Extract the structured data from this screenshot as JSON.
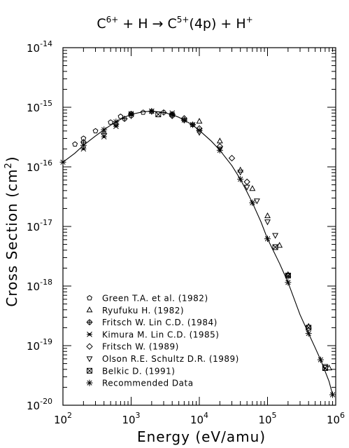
{
  "chart_data": {
    "type": "scatter",
    "title": "C6+ + H → C5+(4p) + H+",
    "title_parts": {
      "ion": "C",
      "ion_charge": "6+",
      "plus1": "+",
      "target": "H",
      "arrow": "→",
      "product": "C",
      "product_charge": "5+",
      "state": "(4p)",
      "plus2": "+",
      "proton": "H",
      "proton_charge": "+"
    },
    "xlabel": "Energy (eV/amu)",
    "ylabel_parts": {
      "main": "Cross Section (cm",
      "exp": "2",
      "close": ")"
    },
    "xscale": "log",
    "yscale": "log",
    "xlim": [
      100,
      1000000
    ],
    "ylim": [
      1e-20,
      1e-14
    ],
    "x_ticks": [
      {
        "mant": "10",
        "exp": "2"
      },
      {
        "mant": "10",
        "exp": "3"
      },
      {
        "mant": "10",
        "exp": "4"
      },
      {
        "mant": "10",
        "exp": "5"
      },
      {
        "mant": "10",
        "exp": "6"
      }
    ],
    "y_ticks": [
      {
        "mant": "10",
        "exp": "-20"
      },
      {
        "mant": "10",
        "exp": "-19"
      },
      {
        "mant": "10",
        "exp": "-18"
      },
      {
        "mant": "10",
        "exp": "-17"
      },
      {
        "mant": "10",
        "exp": "-16"
      },
      {
        "mant": "10",
        "exp": "-15"
      },
      {
        "mant": "10",
        "exp": "-14"
      }
    ],
    "grid": false,
    "legend_position": "bottom-left",
    "series": [
      {
        "name": "Green T.A. et al. (1982)",
        "marker": "pentagon",
        "x": [
          150,
          200,
          300,
          500,
          700,
          1000,
          1500
        ],
        "y": [
          2.4e-16,
          3e-16,
          4e-16,
          5.6e-16,
          7e-16,
          7.8e-16,
          8.2e-16
        ]
      },
      {
        "name": "Ryufuku H. (1982)",
        "marker": "triangle-up",
        "x": [
          10000,
          20000,
          40000,
          60000,
          100000,
          150000,
          200000,
          400000,
          800000
        ],
        "y": [
          5.8e-16,
          2.7e-16,
          8.8e-17,
          4.3e-17,
          1.5e-17,
          4.8e-18,
          1.55e-18,
          2.1e-19,
          4.2e-20
        ]
      },
      {
        "name": "Fritsch W. Lin C.D. (1984)",
        "marker": "circle-plus",
        "x": [
          200,
          400,
          600,
          800,
          1000,
          2000,
          3000,
          4000,
          6000,
          8000
        ],
        "y": [
          2.6e-16,
          3.6e-16,
          5.2e-16,
          6.4e-16,
          7.2e-16,
          8.5e-16,
          8.2e-16,
          7.6e-16,
          6.1e-16,
          5.1e-16
        ]
      },
      {
        "name": "Kimura M. Lin C.D. (1985)",
        "marker": "star",
        "x": [
          200,
          400,
          600,
          1000,
          2000,
          4000,
          8000
        ],
        "y": [
          2e-16,
          3.2e-16,
          4.8e-16,
          7.8e-16,
          8.6e-16,
          8e-16,
          5.1e-16
        ]
      },
      {
        "name": "Fritsch W. (1989)",
        "marker": "diamond",
        "x": [
          4000,
          6000,
          10000,
          20000,
          30000,
          50000
        ],
        "y": [
          7.2e-16,
          6.5e-16,
          4.4e-16,
          2.2e-16,
          1.4e-16,
          5.6e-17
        ]
      },
      {
        "name": "Olson R.E. Schultz D.R. (1989)",
        "marker": "triangle-down",
        "x": [
          10000,
          20000,
          40000,
          50000,
          70000,
          100000,
          130000,
          200000,
          700000
        ],
        "y": [
          3.8e-16,
          2e-16,
          8.2e-17,
          4.6e-17,
          2.7e-17,
          1.2e-17,
          7.1e-18,
          1.5e-18,
          4.5e-20
        ]
      },
      {
        "name": "Belkic D. (1991)",
        "marker": "square-x",
        "x": [
          2500,
          130000,
          200000,
          400000,
          700000
        ],
        "y": [
          7.6e-16,
          4.5e-18,
          1.5e-18,
          2e-19,
          4.2e-20
        ]
      },
      {
        "name": "Recommended Data",
        "marker": "asterisk",
        "line": true,
        "x": [
          100,
          150,
          200,
          300,
          400,
          500,
          600,
          800,
          1000,
          1500,
          2000,
          3000,
          4000,
          5000,
          6000,
          8000,
          10000,
          15000,
          20000,
          30000,
          40000,
          50000,
          60000,
          80000,
          100000,
          150000,
          200000,
          300000,
          400000,
          500000,
          600000,
          800000,
          900000
        ],
        "y": [
          1.2e-16,
          1.7e-16,
          2.3e-16,
          3.3e-16,
          4.2e-16,
          5e-16,
          5.7e-16,
          6.8e-16,
          7.6e-16,
          8.4e-16,
          8.6e-16,
          8.2e-16,
          7.5e-16,
          6.8e-16,
          6.1e-16,
          5e-16,
          4.1e-16,
          2.7e-16,
          1.9e-16,
          1.05e-16,
          6.2e-17,
          3.8e-17,
          2.5e-17,
          1.2e-17,
          6.2e-18,
          2.4e-18,
          1.15e-18,
          3.3e-19,
          1.6e-19,
          9.2e-20,
          5.8e-20,
          2.5e-20,
          1.5e-20
        ]
      }
    ]
  }
}
